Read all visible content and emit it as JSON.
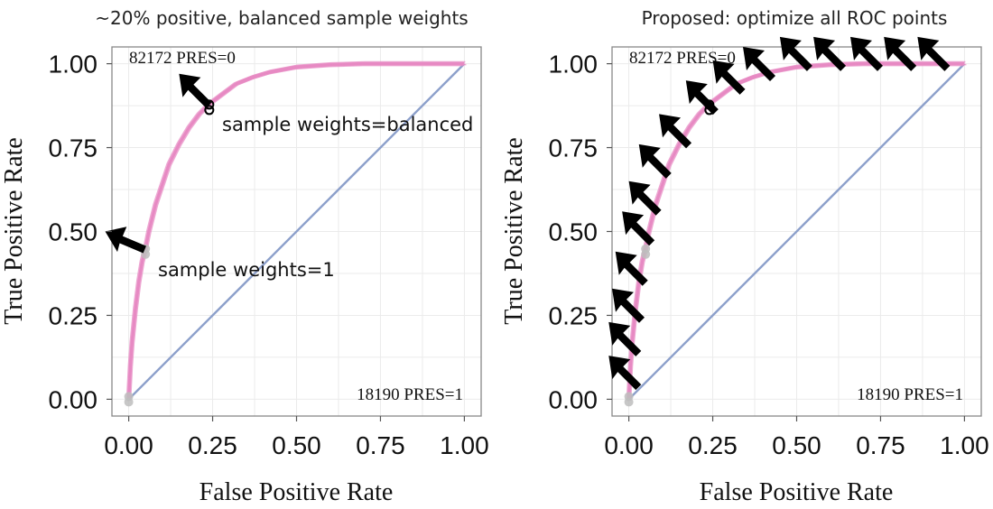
{
  "colors": {
    "roc": "#e78ac3",
    "diagonal": "#8da0cb",
    "grid": "#ebebeb",
    "panel_border": "#888888",
    "point_grey": "#bdbdbd",
    "arrow": "#000000"
  },
  "chart_data": [
    {
      "type": "line",
      "title": "~20% positive, balanced sample weights",
      "xlabel": "False Positive Rate",
      "ylabel": "True Positive Rate",
      "xlim": [
        -0.05,
        1.05
      ],
      "ylim": [
        -0.05,
        1.05
      ],
      "x_ticks": [
        "0.00",
        "0.25",
        "0.50",
        "0.75",
        "1.00"
      ],
      "y_ticks": [
        "0.00",
        "0.25",
        "0.50",
        "0.75",
        "1.00"
      ],
      "grid": true,
      "corner_labels": {
        "top_left": "82172 PRES=0",
        "bottom_right": "18190 PRES=1"
      },
      "series": [
        {
          "x": [
            0,
            0.005,
            0.01,
            0.02,
            0.03,
            0.04,
            0.05,
            0.06,
            0.08,
            0.1,
            0.12,
            0.15,
            0.18,
            0.21,
            0.24,
            0.28,
            0.32,
            0.37,
            0.42,
            0.5,
            0.6,
            0.7,
            0.8,
            0.9,
            1.0
          ],
          "y": [
            0,
            0.1,
            0.17,
            0.27,
            0.35,
            0.41,
            0.45,
            0.5,
            0.58,
            0.64,
            0.7,
            0.76,
            0.81,
            0.85,
            0.88,
            0.91,
            0.94,
            0.96,
            0.975,
            0.99,
            0.997,
            1.0,
            1.0,
            1.0,
            1.0
          ]
        },
        {
          "x": [
            0,
            1
          ],
          "y": [
            0,
            1
          ]
        }
      ],
      "points": [
        {
          "x": 0.05,
          "y": 0.44,
          "label": "sample weights=1",
          "style": "grey"
        },
        {
          "x": 0.24,
          "y": 0.87,
          "label": "sample weights=balanced",
          "style": "ring"
        },
        {
          "x": 0.0,
          "y": 0.0,
          "label": "",
          "style": "grey"
        }
      ],
      "arrows": [
        {
          "x": -0.07,
          "y": 0.5,
          "dir": "left"
        },
        {
          "x": 0.15,
          "y": 0.97,
          "dir": "up-left"
        }
      ]
    },
    {
      "type": "line",
      "title": "Proposed: optimize all ROC points",
      "xlabel": "False Positive Rate",
      "ylabel": "True Positive Rate",
      "xlim": [
        -0.05,
        1.05
      ],
      "ylim": [
        -0.05,
        1.05
      ],
      "x_ticks": [
        "0.00",
        "0.25",
        "0.50",
        "0.75",
        "1.00"
      ],
      "y_ticks": [
        "0.00",
        "0.25",
        "0.50",
        "0.75",
        "1.00"
      ],
      "grid": true,
      "corner_labels": {
        "top_left": "82172 PRES=0",
        "bottom_right": "18190 PRES=1"
      },
      "series": [
        {
          "x": [
            0,
            0.005,
            0.01,
            0.02,
            0.03,
            0.04,
            0.05,
            0.06,
            0.08,
            0.1,
            0.12,
            0.15,
            0.18,
            0.21,
            0.24,
            0.28,
            0.32,
            0.37,
            0.42,
            0.5,
            0.6,
            0.7,
            0.8,
            0.9,
            1.0
          ],
          "y": [
            0,
            0.1,
            0.17,
            0.27,
            0.35,
            0.41,
            0.45,
            0.5,
            0.58,
            0.64,
            0.7,
            0.76,
            0.81,
            0.85,
            0.88,
            0.91,
            0.94,
            0.96,
            0.975,
            0.99,
            0.997,
            1.0,
            1.0,
            1.0,
            1.0
          ]
        },
        {
          "x": [
            0,
            1
          ],
          "y": [
            0,
            1
          ]
        }
      ],
      "points": [
        {
          "x": 0.05,
          "y": 0.44,
          "label": "",
          "style": "grey"
        },
        {
          "x": 0.24,
          "y": 0.87,
          "label": "",
          "style": "ring"
        },
        {
          "x": 0.0,
          "y": 0.0,
          "label": "",
          "style": "grey"
        }
      ],
      "arrows": [
        {
          "x": -0.06,
          "y": 0.13,
          "dir": "up-left"
        },
        {
          "x": -0.06,
          "y": 0.23,
          "dir": "up-left"
        },
        {
          "x": -0.05,
          "y": 0.33,
          "dir": "up-left"
        },
        {
          "x": -0.04,
          "y": 0.44,
          "dir": "up-left"
        },
        {
          "x": -0.02,
          "y": 0.56,
          "dir": "up-left"
        },
        {
          "x": 0.0,
          "y": 0.65,
          "dir": "up-left"
        },
        {
          "x": 0.03,
          "y": 0.76,
          "dir": "up-left"
        },
        {
          "x": 0.09,
          "y": 0.85,
          "dir": "up-left"
        },
        {
          "x": 0.17,
          "y": 0.95,
          "dir": "up-left"
        },
        {
          "x": 0.25,
          "y": 1.01,
          "dir": "up-left"
        },
        {
          "x": 0.34,
          "y": 1.05,
          "dir": "up-left"
        },
        {
          "x": 0.45,
          "y": 1.08,
          "dir": "up-left"
        },
        {
          "x": 0.55,
          "y": 1.08,
          "dir": "up-left"
        },
        {
          "x": 0.66,
          "y": 1.08,
          "dir": "up-left"
        },
        {
          "x": 0.76,
          "y": 1.08,
          "dir": "up-left"
        },
        {
          "x": 0.86,
          "y": 1.08,
          "dir": "up-left"
        }
      ]
    }
  ]
}
